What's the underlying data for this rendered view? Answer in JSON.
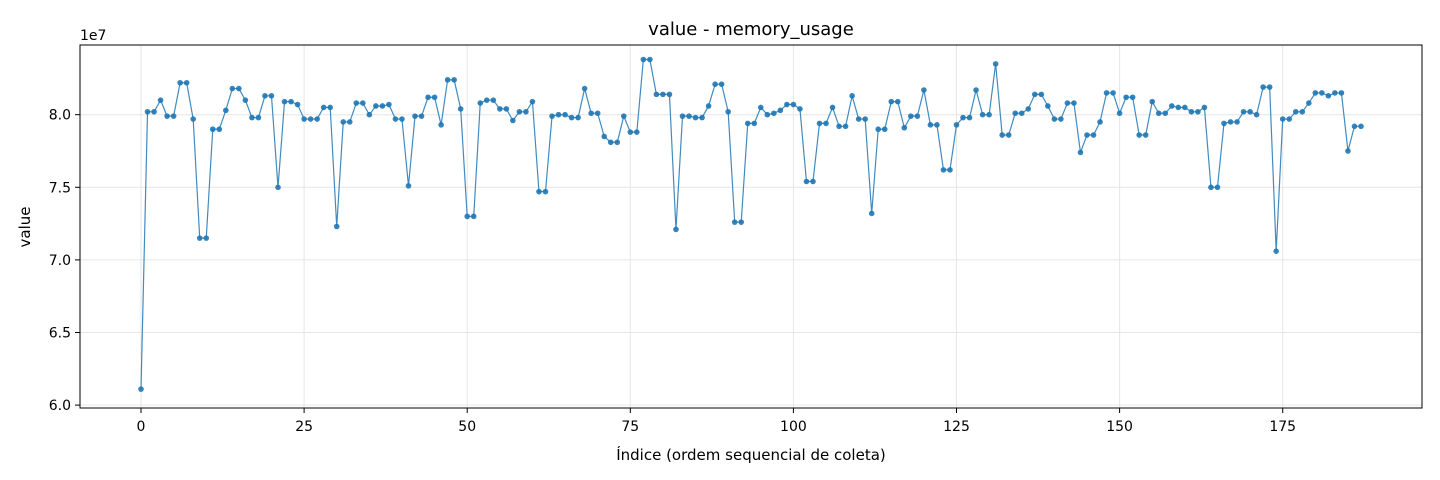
{
  "chart_data": {
    "type": "line",
    "title": "value - memory_usage",
    "xlabel": "Índice (ordem sequencial de coleta)",
    "ylabel": "value",
    "offset_text": "1e7",
    "xlim": [
      -9.35,
      196.35
    ],
    "ylim": [
      59800000,
      84800000
    ],
    "xticks": [
      0,
      25,
      50,
      75,
      100,
      125,
      150,
      175
    ],
    "yticks": [
      60000000,
      65000000,
      70000000,
      75000000,
      80000000
    ],
    "ytick_labels": [
      "6.0",
      "6.5",
      "7.0",
      "7.5",
      "8.0"
    ],
    "grid": true,
    "marker": "circle",
    "color": "#1f77b4",
    "series": [
      {
        "name": "",
        "y": [
          61100000,
          80200000,
          80200000,
          81000000,
          79900000,
          79900000,
          82200000,
          82200000,
          79700000,
          71500000,
          71500000,
          79000000,
          79000000,
          80300000,
          81800000,
          81800000,
          81000000,
          79800000,
          79800000,
          81300000,
          81300000,
          75000000,
          80900000,
          80900000,
          80700000,
          79700000,
          79700000,
          79700000,
          80500000,
          80500000,
          72300000,
          79500000,
          79500000,
          80800000,
          80800000,
          80000000,
          80600000,
          80600000,
          80700000,
          79700000,
          79700000,
          75100000,
          79900000,
          79900000,
          81200000,
          81200000,
          79300000,
          82400000,
          82400000,
          80400000,
          73000000,
          73000000,
          80800000,
          81000000,
          81000000,
          80400000,
          80400000,
          79600000,
          80200000,
          80200000,
          80900000,
          74700000,
          74700000,
          79900000,
          80000000,
          80000000,
          79800000,
          79800000,
          81800000,
          80100000,
          80100000,
          78500000,
          78100000,
          78100000,
          79900000,
          78800000,
          78800000,
          83800000,
          83800000,
          81400000,
          81400000,
          81400000,
          72100000,
          79900000,
          79900000,
          79800000,
          79800000,
          80600000,
          82100000,
          82100000,
          80200000,
          72600000,
          72600000,
          79400000,
          79400000,
          80500000,
          80000000,
          80100000,
          80300000,
          80700000,
          80700000,
          80400000,
          75400000,
          75400000,
          79400000,
          79400000,
          80500000,
          79200000,
          79200000,
          81300000,
          79700000,
          79700000,
          73200000,
          79000000,
          79000000,
          80900000,
          80900000,
          79100000,
          79900000,
          79900000,
          81700000,
          79300000,
          79300000,
          76200000,
          76200000,
          79300000,
          79800000,
          79800000,
          81700000,
          80000000,
          80000000,
          83500000,
          78600000,
          78600000,
          80100000,
          80100000,
          80400000,
          81400000,
          81400000,
          80600000,
          79700000,
          79700000,
          80800000,
          80800000,
          77400000,
          78600000,
          78600000,
          79500000,
          81500000,
          81500000,
          80100000,
          81200000,
          81200000,
          78600000,
          78600000,
          80900000,
          80100000,
          80100000,
          80600000,
          80500000,
          80500000,
          80200000,
          80200000,
          80500000,
          75000000,
          75000000,
          79400000,
          79500000,
          79500000,
          80200000,
          80200000,
          80000000,
          81900000,
          81900000,
          70600000,
          79700000,
          79700000,
          80200000,
          80200000,
          80800000,
          81500000,
          81500000,
          81300000,
          81500000,
          81500000,
          77500000,
          79200000,
          79200000
        ]
      }
    ]
  }
}
